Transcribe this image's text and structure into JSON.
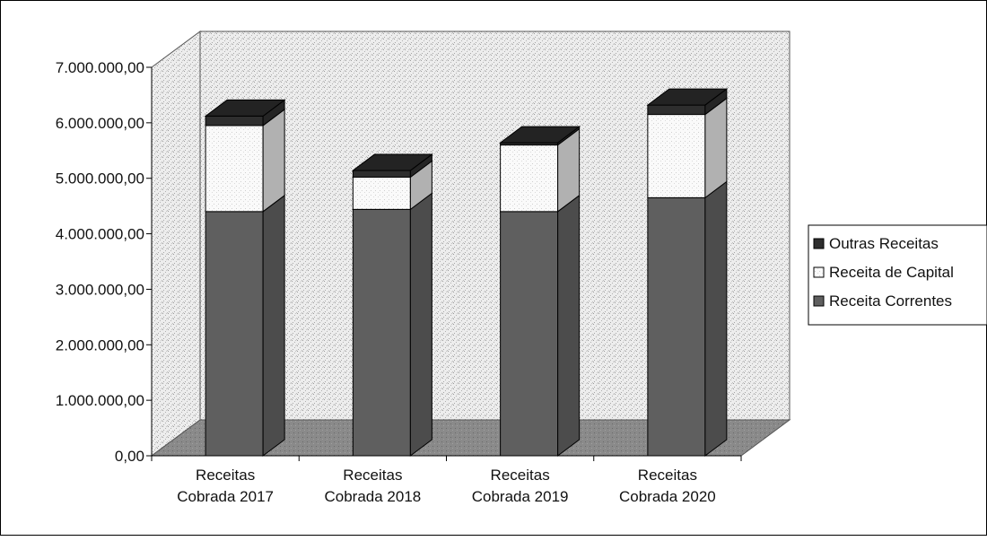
{
  "chart_data": {
    "type": "bar",
    "stacked": true,
    "three_d": true,
    "categories": [
      [
        "Receitas",
        "Cobrada 2017"
      ],
      [
        "Receitas",
        "Cobrada 2018"
      ],
      [
        "Receitas",
        "Cobrada 2019"
      ],
      [
        "Receitas",
        "Cobrada 2020"
      ]
    ],
    "series": [
      {
        "name": "Receita Correntes",
        "values": [
          4400000,
          4440000,
          4400000,
          4650000
        ]
      },
      {
        "name": "Receita de Capital",
        "values": [
          1550000,
          580000,
          1200000,
          1500000
        ]
      },
      {
        "name": "Outras Receitas",
        "values": [
          170000,
          120000,
          40000,
          170000
        ]
      }
    ],
    "ylim": [
      0,
      7000000
    ],
    "yticks": [
      "0,00",
      "1.000.000,00",
      "2.000.000,00",
      "3.000.000,00",
      "4.000.000,00",
      "5.000.000,00",
      "6.000.000,00",
      "7.000.000,00"
    ],
    "legend_order": [
      "Outras Receitas",
      "Receita de Capital",
      "Receita Correntes"
    ],
    "legend_position": "right",
    "grid": false,
    "colors": {
      "Receita Correntes": "#5f5f5f",
      "Receita de Capital": "#f6f6f6",
      "Outras Receitas": "#2e2e2e",
      "back_wall": "#dcdcdc",
      "floor": "#8a8a8a"
    }
  }
}
